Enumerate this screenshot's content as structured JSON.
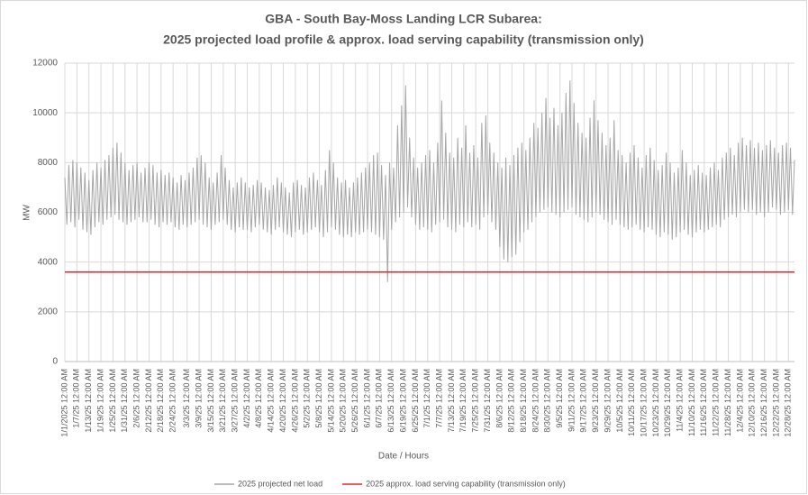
{
  "chart_data": {
    "type": "line",
    "title": [
      "GBA - South Bay-Moss Landing LCR Subarea:",
      "2025 projected load profile & approx. load serving capability (transmission only)"
    ],
    "xlabel": "Date / Hours",
    "ylabel": "MW",
    "ylim": [
      0,
      12000
    ],
    "yticks": [
      0,
      2000,
      4000,
      6000,
      8000,
      10000,
      12000
    ],
    "grid": true,
    "legend": "bottom",
    "categories": [
      "1/1/2025 12:00 AM",
      null,
      null,
      null,
      null,
      null,
      "1/7/25 12:00 AM",
      null,
      null,
      null,
      null,
      null,
      "1/13/25 12:00 AM",
      null,
      null,
      null,
      null,
      null,
      "1/19/25 12:00 AM",
      null,
      null,
      null,
      null,
      null,
      "1/25/25 12:00 AM",
      null,
      null,
      null,
      null,
      null,
      "1/31/25 12:00 AM",
      null,
      null,
      null,
      null,
      null,
      "2/6/25 12:00 AM",
      null,
      null,
      null,
      null,
      null,
      "2/12/25 12:00 AM",
      null,
      null,
      null,
      null,
      null,
      "2/18/25 12:00 AM",
      null,
      null,
      null,
      null,
      null,
      "2/24/25 12:00 AM",
      null,
      null,
      null,
      null,
      null,
      null,
      "3/3/25 12:00 AM",
      null,
      null,
      null,
      null,
      null,
      "3/9/25 12:00 AM",
      null,
      null,
      null,
      null,
      null,
      "3/15/25 12:00 AM",
      null,
      null,
      null,
      null,
      null,
      "3/21/25 12:00 AM",
      null,
      null,
      null,
      null,
      null,
      "3/27/25 12:00 AM",
      null,
      null,
      null,
      null,
      null,
      "4/2/25 12:00 AM",
      null,
      null,
      null,
      null,
      null,
      "4/8/25 12:00 AM",
      null,
      null,
      null,
      null,
      null,
      "4/14/25 12:00 AM",
      null,
      null,
      null,
      null,
      null,
      "4/20/25 12:00 AM",
      null,
      null,
      null,
      null,
      null,
      "4/26/25 12:00 AM",
      null,
      null,
      null,
      null,
      null,
      "5/2/25 12:00 AM",
      null,
      null,
      null,
      null,
      null,
      "5/8/25 12:00 AM",
      null,
      null,
      null,
      null,
      null,
      "5/14/25 12:00 AM",
      null,
      null,
      null,
      null,
      null,
      "5/20/25 12:00 AM",
      null,
      null,
      null,
      null,
      null,
      "5/26/25 12:00 AM",
      null,
      null,
      null,
      null,
      null,
      "6/1/25 12:00 AM",
      null,
      null,
      null,
      null,
      null,
      "6/7/25 12:00 AM",
      null,
      null,
      null,
      null,
      null,
      "6/13/25 12:00 AM",
      null,
      null,
      null,
      null,
      null,
      "6/19/25 12:00 AM",
      null,
      null,
      null,
      null,
      null,
      "6/25/25 12:00 AM",
      null,
      null,
      null,
      null,
      null,
      "7/1/25 12:00 AM",
      null,
      null,
      null,
      null,
      null,
      "7/7/25 12:00 AM",
      null,
      null,
      null,
      null,
      null,
      "7/13/25 12:00 AM",
      null,
      null,
      null,
      null,
      null,
      "7/19/25 12:00 AM",
      null,
      null,
      null,
      null,
      null,
      "7/25/25 12:00 AM",
      null,
      null,
      null,
      null,
      null,
      "7/31/25 12:00 AM",
      null,
      null,
      null,
      null,
      null,
      "8/6/25 12:00 AM",
      null,
      null,
      null,
      null,
      null,
      "8/12/25 12:00 AM",
      null,
      null,
      null,
      null,
      null,
      "8/18/25 12:00 AM",
      null,
      null,
      null,
      null,
      null,
      "8/24/25 12:00 AM",
      null,
      null,
      null,
      null,
      null,
      "8/30/25 12:00 AM",
      null,
      null,
      null,
      null,
      null,
      "9/5/25 12:00 AM",
      null,
      null,
      null,
      null,
      null,
      "9/11/25 12:00 AM",
      null,
      null,
      null,
      null,
      null,
      "9/17/25 12:00 AM",
      null,
      null,
      null,
      null,
      null,
      "9/23/25 12:00 AM",
      null,
      null,
      null,
      null,
      null,
      "9/29/25 12:00 AM",
      null,
      null,
      null,
      null,
      null,
      "10/5/25 12:00 AM",
      null,
      null,
      null,
      null,
      null,
      "10/11/25 12:00 AM",
      null,
      null,
      null,
      null,
      null,
      "10/17/25 12:00 AM",
      null,
      null,
      null,
      null,
      null,
      "10/23/25 12:00 AM",
      null,
      null,
      null,
      null,
      null,
      "10/29/25 12:00 AM",
      null,
      null,
      null,
      null,
      null,
      "11/4/25 12:00 AM",
      null,
      null,
      null,
      null,
      null,
      "11/10/25 12:00 AM",
      null,
      null,
      null,
      null,
      null,
      "11/16/25 12:00 AM",
      null,
      null,
      null,
      null,
      null,
      "11/22/25 12:00 AM",
      null,
      null,
      null,
      null,
      null,
      "11/28/25 12:00 AM",
      null,
      null,
      null,
      null,
      null,
      "12/4/25 12:00 AM",
      null,
      null,
      null,
      null,
      null,
      "12/10/25 12:00 AM",
      null,
      null,
      null,
      null,
      null,
      "12/16/25 12:00 AM",
      null,
      null,
      null,
      null,
      null,
      "12/22/25 12:00 AM",
      null,
      null,
      null,
      null,
      null,
      "12/28/25 12:00 AM",
      null,
      null,
      null
    ],
    "series": [
      {
        "name": "2025 projected net load",
        "color": "#a6a6a6",
        "values": [
          7400,
          5500,
          7900,
          5600,
          8100,
          5400,
          8000,
          5700,
          7800,
          5300,
          7600,
          5200,
          7300,
          5100,
          7700,
          5400,
          8000,
          5600,
          7800,
          5500,
          8100,
          5700,
          8300,
          5800,
          8600,
          5900,
          8800,
          5700,
          8400,
          5600,
          8000,
          5500,
          7700,
          5600,
          7900,
          5700,
          8000,
          5800,
          7600,
          5600,
          7800,
          5600,
          8000,
          5700,
          7900,
          5500,
          7600,
          5400,
          7700,
          5600,
          7500,
          5500,
          7600,
          5600,
          7400,
          5400,
          7200,
          5300,
          7500,
          5500,
          7300,
          5400,
          7600,
          5500,
          7800,
          5600,
          8200,
          5700,
          8300,
          5500,
          8000,
          5400,
          7400,
          5300,
          7200,
          5500,
          7600,
          5600,
          8300,
          5700,
          7800,
          5500,
          7300,
          5300,
          7000,
          5200,
          7200,
          5400,
          7400,
          5300,
          7200,
          5300,
          7000,
          5200,
          7100,
          5400,
          7300,
          5500,
          7200,
          5300,
          7000,
          5200,
          6900,
          5100,
          7100,
          5300,
          7400,
          5400,
          7200,
          5200,
          7000,
          5100,
          6800,
          5000,
          7200,
          5200,
          7300,
          5300,
          7100,
          5100,
          7000,
          5200,
          7400,
          5300,
          7600,
          5400,
          7300,
          5200,
          7100,
          5000,
          7700,
          5200,
          8500,
          5400,
          8000,
          5300,
          7400,
          5100,
          7200,
          5000,
          7300,
          5100,
          7000,
          5000,
          7200,
          5200,
          7400,
          5100,
          7600,
          5200,
          7800,
          5300,
          8000,
          5200,
          8300,
          5100,
          8400,
          5000,
          7900,
          4900,
          7500,
          3200,
          8000,
          5300,
          7800,
          5600,
          9500,
          5800,
          10300,
          6000,
          11100,
          6200,
          9000,
          5800,
          8200,
          5500,
          7800,
          5300,
          8000,
          5400,
          8300,
          5300,
          8500,
          5200,
          8000,
          5500,
          8800,
          5600,
          10500,
          5700,
          9200,
          5400,
          8400,
          5300,
          8200,
          5200,
          9000,
          5500,
          8600,
          5400,
          9500,
          5600,
          8400,
          5400,
          8700,
          5500,
          8200,
          5300,
          9600,
          5800,
          9900,
          5900,
          8800,
          5600,
          8400,
          5300,
          8000,
          4600,
          7800,
          4100,
          8200,
          4000,
          7900,
          4200,
          8300,
          4300,
          8600,
          4800,
          8800,
          5200,
          8500,
          5300,
          9000,
          5600,
          9600,
          5800,
          9400,
          6000,
          10000,
          6100,
          10600,
          6200,
          9800,
          6000,
          10200,
          5900,
          9500,
          5800,
          10000,
          6000,
          10800,
          6100,
          11300,
          6200,
          10400,
          5900,
          9600,
          5800,
          9200,
          5700,
          9000,
          5600,
          9800,
          5800,
          10500,
          6000,
          9700,
          5900,
          9200,
          5700,
          8700,
          5600,
          9000,
          5500,
          9700,
          5700,
          8500,
          5500,
          8300,
          5400,
          8000,
          5300,
          8400,
          5400,
          8700,
          5500,
          8200,
          5300,
          7800,
          5200,
          8300,
          5400,
          8600,
          5300,
          8100,
          5100,
          7700,
          5000,
          7900,
          5200,
          8400,
          5100,
          8000,
          4900,
          7600,
          5000,
          7800,
          5200,
          8500,
          5300,
          8000,
          5100,
          7500,
          5000,
          7700,
          5200,
          7900,
          5300,
          7600,
          5200,
          7500,
          5300,
          7800,
          5400,
          8000,
          5500,
          7700,
          5400,
          8200,
          5700,
          8400,
          5800,
          8600,
          5900,
          8300,
          5800,
          8800,
          6000,
          9000,
          6100,
          8700,
          6000,
          8900,
          6100,
          8600,
          5900,
          8800,
          6000,
          8500,
          5800,
          8700,
          6000,
          8900,
          6200,
          8600,
          6100,
          8400,
          5900,
          8700,
          6000,
          8800,
          6100,
          8600,
          5900,
          8100
        ]
      },
      {
        "name": "2025 approx. load serving  capability (transmission only)",
        "color": "#e8262a",
        "value": 3600
      }
    ]
  }
}
